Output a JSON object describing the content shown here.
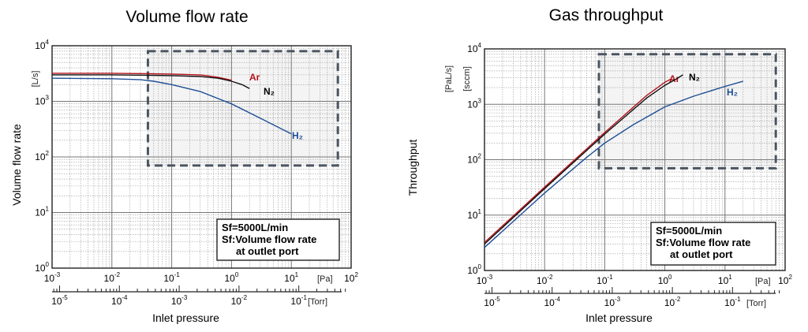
{
  "chart_data": [
    {
      "type": "line",
      "title": "Volume flow rate",
      "xlabel": "Inlet pressure",
      "ylabel": "Volume flow rate",
      "y_unit": "[L/s]",
      "x_unit_primary": "[Pa]",
      "x_unit_secondary": "[Torr]",
      "x_scale": "log",
      "y_scale": "log",
      "xlim": [
        0.001,
        100
      ],
      "ylim": [
        1,
        10000
      ],
      "x_ticks": [
        {
          "base": "10",
          "exp": "-3"
        },
        {
          "base": "10",
          "exp": "-2"
        },
        {
          "base": "10",
          "exp": "-1"
        },
        {
          "base": "10",
          "exp": "0"
        },
        {
          "base": "10",
          "exp": "1"
        },
        {
          "base": "10",
          "exp": "2"
        }
      ],
      "x_ticks_secondary": [
        {
          "base": "10",
          "exp": "-5"
        },
        {
          "base": "10",
          "exp": "-4"
        },
        {
          "base": "10",
          "exp": "-3"
        },
        {
          "base": "10",
          "exp": "-2"
        },
        {
          "base": "10",
          "exp": "-1"
        }
      ],
      "y_ticks": [
        {
          "base": "10",
          "exp": "0"
        },
        {
          "base": "10",
          "exp": "1"
        },
        {
          "base": "10",
          "exp": "2"
        },
        {
          "base": "10",
          "exp": "3"
        },
        {
          "base": "10",
          "exp": "4"
        }
      ],
      "grid": true,
      "note": [
        "Sf=5000L/min",
        "Sf:Volume flow rate",
        "at outlet port"
      ],
      "highlight_region": {
        "x": [
          0.04,
          60
        ],
        "y": [
          70,
          8000
        ]
      },
      "series": [
        {
          "name": "Ar",
          "label_color": "#b5121b",
          "color": "#b5121b",
          "x": [
            0.001,
            0.01,
            0.04,
            0.1,
            0.3,
            0.6,
            1.0
          ],
          "y": [
            3200,
            3200,
            3150,
            3100,
            3000,
            2700,
            2400
          ]
        },
        {
          "name": "N₂",
          "label_color": "#000000",
          "color": "#111111",
          "x": [
            0.001,
            0.01,
            0.04,
            0.1,
            0.3,
            0.6,
            1.0,
            1.5,
            2.0
          ],
          "y": [
            3000,
            3000,
            2950,
            2900,
            2800,
            2600,
            2300,
            2000,
            1700
          ]
        },
        {
          "name": "H₂",
          "label_color": "#1f4e96",
          "color": "#1f4e96",
          "x": [
            0.001,
            0.01,
            0.03,
            0.05,
            0.1,
            0.3,
            1.0,
            3.0,
            10.0
          ],
          "y": [
            2600,
            2550,
            2450,
            2300,
            2000,
            1500,
            900,
            500,
            260
          ]
        }
      ]
    },
    {
      "type": "line",
      "title": "Gas throughput",
      "xlabel": "Inlet pressure",
      "ylabel": "Throughput",
      "y_unit": "[PaL/s]",
      "y_unit_secondary": "[sccm]",
      "x_unit_primary": "[Pa]",
      "x_unit_secondary": "[Torr]",
      "x_scale": "log",
      "y_scale": "log",
      "xlim": [
        0.001,
        100
      ],
      "ylim": [
        1,
        10000
      ],
      "x_ticks": [
        {
          "base": "10",
          "exp": "-3"
        },
        {
          "base": "10",
          "exp": "-2"
        },
        {
          "base": "10",
          "exp": "-1"
        },
        {
          "base": "10",
          "exp": "0"
        },
        {
          "base": "10",
          "exp": "1"
        },
        {
          "base": "10",
          "exp": "2"
        }
      ],
      "x_ticks_secondary": [
        {
          "base": "10",
          "exp": "-5"
        },
        {
          "base": "10",
          "exp": "-4"
        },
        {
          "base": "10",
          "exp": "-3"
        },
        {
          "base": "10",
          "exp": "-2"
        },
        {
          "base": "10",
          "exp": "-1"
        }
      ],
      "y_ticks": [
        {
          "base": "10",
          "exp": "0"
        },
        {
          "base": "10",
          "exp": "1"
        },
        {
          "base": "10",
          "exp": "2"
        },
        {
          "base": "10",
          "exp": "3"
        },
        {
          "base": "10",
          "exp": "4"
        }
      ],
      "grid": true,
      "note": [
        "Sf=5000L/min",
        "Sf:Volume flow rate",
        "at outlet port"
      ],
      "highlight_region": {
        "x": [
          0.08,
          70
        ],
        "y": [
          70,
          8000
        ]
      },
      "series": [
        {
          "name": "Ar",
          "label_color": "#b5121b",
          "color": "#b5121b",
          "x": [
            0.001,
            0.01,
            0.1,
            0.5,
            1.0,
            1.3
          ],
          "y": [
            3.2,
            32,
            310,
            1450,
            2500,
            2900
          ]
        },
        {
          "name": "N₂",
          "label_color": "#000000",
          "color": "#111111",
          "x": [
            0.001,
            0.01,
            0.1,
            0.5,
            1.0,
            1.5,
            2.0
          ],
          "y": [
            3.0,
            30,
            290,
            1300,
            2200,
            2800,
            3400
          ]
        },
        {
          "name": "H₂",
          "label_color": "#1f4e96",
          "color": "#1f4e96",
          "x": [
            0.001,
            0.01,
            0.05,
            0.1,
            0.3,
            1.0,
            3.0,
            10.0,
            20.0
          ],
          "y": [
            2.6,
            25,
            110,
            200,
            430,
            900,
            1400,
            2100,
            2600
          ]
        }
      ]
    }
  ]
}
